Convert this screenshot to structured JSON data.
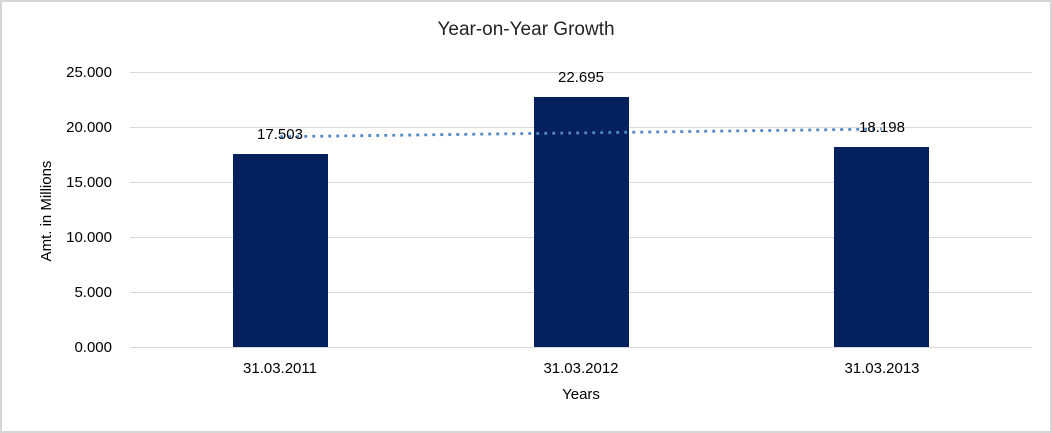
{
  "chart_data": {
    "type": "bar",
    "title": "Year-on-Year Growth",
    "categories": [
      "31.03.2011",
      "31.03.2012",
      "31.03.2013"
    ],
    "values": [
      17.503,
      22.695,
      18.198
    ],
    "data_labels": [
      "17.503",
      "22.695",
      "18.198"
    ],
    "xlabel": "Years",
    "ylabel": "Amt. in Millions",
    "ylim": [
      0,
      25
    ],
    "yticks": [
      0,
      5,
      10,
      15,
      20,
      25
    ],
    "ytick_labels": [
      "0.000",
      "5.000",
      "10.000",
      "15.000",
      "20.000",
      "25.000"
    ],
    "grid": true,
    "legend": "none",
    "trendline": {
      "kind": "linear",
      "style": "dotted",
      "color": "#4f87c9"
    },
    "colors": {
      "bar": "#04215e",
      "gridline": "#d9d9d9",
      "axis_line": "#d9d9d9",
      "text": "#000000",
      "title_text": "#232323",
      "background": "#ffffff",
      "border": "#d6d6d6"
    }
  }
}
